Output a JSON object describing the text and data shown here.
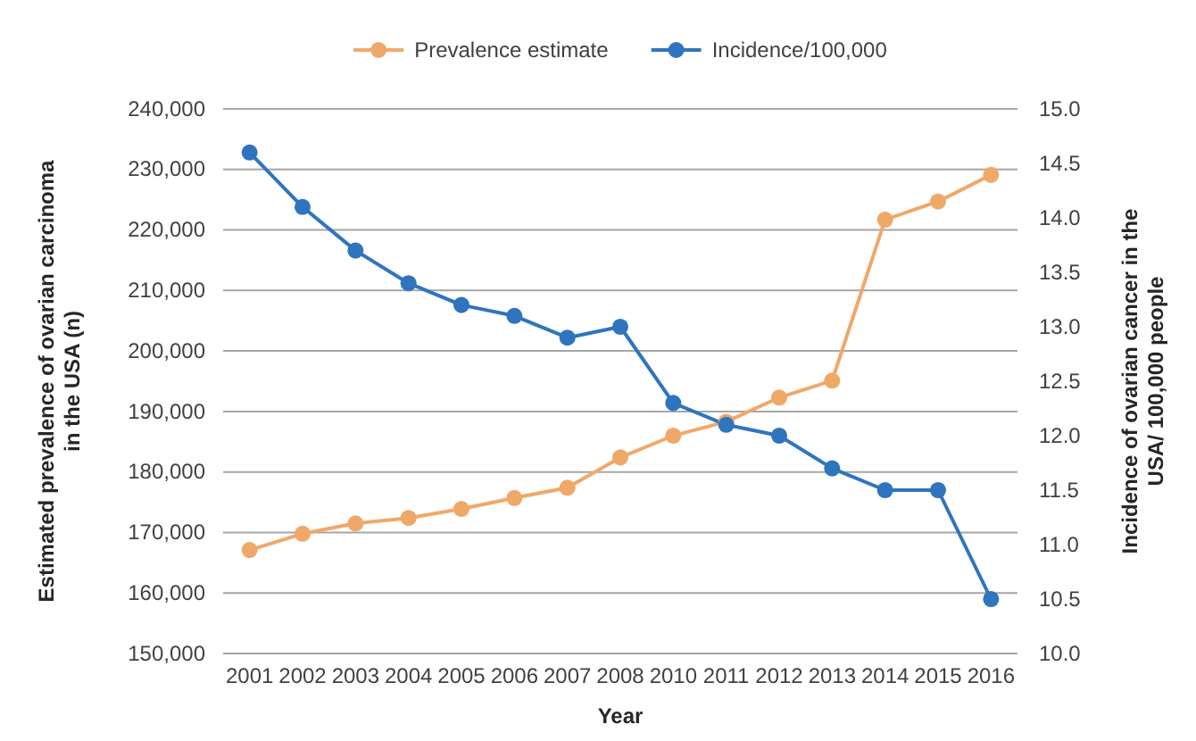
{
  "chart_data": {
    "type": "line",
    "xlabel": "Year",
    "ylabel": "Estimated prevalence of ovarian carcinoma in the USA (n)",
    "y2label": "Incidence of ovarian cancer in the USA/ 100,000 people",
    "categories": [
      "2001",
      "2002",
      "2003",
      "2004",
      "2005",
      "2006",
      "2007",
      "2008",
      "2010",
      "2011",
      "2012",
      "2013",
      "2014",
      "2015",
      "2016"
    ],
    "series": [
      {
        "name": "Prevalence estimate",
        "color": "#f0a868",
        "values": [
          167100,
          169800,
          171500,
          172400,
          173900,
          175700,
          177400,
          182400,
          186000,
          188300,
          192300,
          195100,
          221700,
          224700,
          229100
        ]
      },
      {
        "name": "Incidence/100,000",
        "color": "#2f74bf",
        "axis": "y2",
        "values": [
          14.6,
          14.1,
          13.7,
          13.4,
          13.2,
          13.1,
          12.9,
          13.0,
          12.3,
          12.1,
          12.0,
          11.7,
          11.5,
          11.5,
          10.5
        ]
      }
    ],
    "ylim": [
      150000,
      240000
    ],
    "yticks": [
      {
        "value": 150000,
        "label": "150,000"
      },
      {
        "value": 160000,
        "label": "160,000"
      },
      {
        "value": 170000,
        "label": "170,000"
      },
      {
        "value": 180000,
        "label": "180,000"
      },
      {
        "value": 190000,
        "label": "190,000"
      },
      {
        "value": 200000,
        "label": "200,000"
      },
      {
        "value": 210000,
        "label": "210,000"
      },
      {
        "value": 220000,
        "label": "220,000"
      },
      {
        "value": 230000,
        "label": "230,000"
      },
      {
        "value": 240000,
        "label": "240,000"
      }
    ],
    "y2lim": [
      10,
      15
    ],
    "y2ticks": [
      {
        "value": 10,
        "label": "10.0"
      },
      {
        "value": 10.5,
        "label": "10.5"
      },
      {
        "value": 11,
        "label": "11.0"
      },
      {
        "value": 11.5,
        "label": "11.5"
      },
      {
        "value": 12,
        "label": "12.0"
      },
      {
        "value": 12.5,
        "label": "12.5"
      },
      {
        "value": 13,
        "label": "13.0"
      },
      {
        "value": 13.5,
        "label": "13.5"
      },
      {
        "value": 14,
        "label": "14.0"
      },
      {
        "value": 14.5,
        "label": "14.5"
      },
      {
        "value": 15,
        "label": "15.0"
      }
    ],
    "grid": "y",
    "legend": "top",
    "marker": "circle",
    "line_style": "solid"
  }
}
